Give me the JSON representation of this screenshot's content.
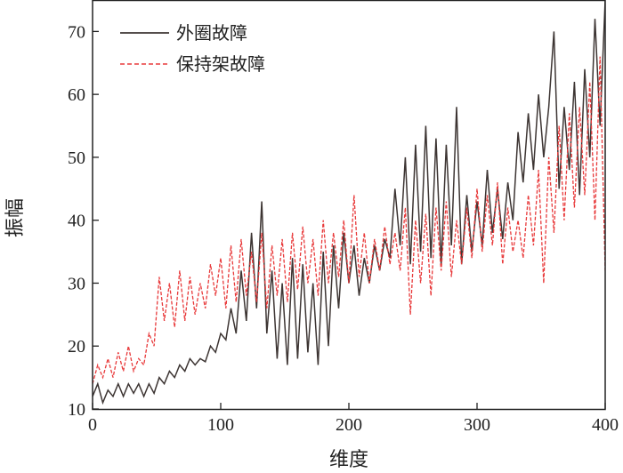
{
  "chart_data": {
    "type": "line",
    "title": "",
    "xlabel": "维度",
    "ylabel": "振幅",
    "xlim": [
      0,
      400
    ],
    "ylim": [
      10,
      75
    ],
    "xticks": [
      0,
      100,
      200,
      300,
      400
    ],
    "yticks": [
      10,
      20,
      30,
      40,
      50,
      60,
      70
    ],
    "grid": false,
    "legend_position": "top-left",
    "x": [
      0,
      4,
      8,
      12,
      16,
      20,
      24,
      28,
      32,
      36,
      40,
      44,
      48,
      52,
      56,
      60,
      64,
      68,
      72,
      76,
      80,
      84,
      88,
      92,
      96,
      100,
      104,
      108,
      112,
      116,
      120,
      124,
      128,
      132,
      136,
      140,
      144,
      148,
      152,
      156,
      160,
      164,
      168,
      172,
      176,
      180,
      184,
      188,
      192,
      196,
      200,
      204,
      208,
      212,
      216,
      220,
      224,
      228,
      232,
      236,
      240,
      244,
      248,
      252,
      256,
      260,
      264,
      268,
      272,
      276,
      280,
      284,
      288,
      292,
      296,
      300,
      304,
      308,
      312,
      316,
      320,
      324,
      328,
      332,
      336,
      340,
      344,
      348,
      352,
      356,
      360,
      364,
      368,
      372,
      376,
      380,
      384,
      388,
      392,
      396,
      400
    ],
    "series": [
      {
        "name": "外圈故障",
        "color": "#3d3533",
        "style": "solid",
        "values": [
          12,
          14,
          11,
          13,
          12,
          14,
          12,
          14,
          12.5,
          14,
          12,
          14,
          12.5,
          15,
          14,
          16,
          15,
          17,
          16,
          18,
          17,
          18,
          17.5,
          20,
          19,
          22,
          21,
          26,
          22,
          32,
          24,
          38,
          26,
          43,
          22,
          32,
          18,
          30,
          17,
          34,
          18,
          33,
          19,
          30,
          17,
          35,
          20,
          36,
          26,
          38,
          30,
          36,
          28,
          34,
          30,
          36,
          32,
          37,
          34,
          45,
          36,
          50,
          33,
          52,
          35,
          55,
          34,
          53,
          33,
          52,
          36,
          58,
          33,
          44,
          35,
          43,
          36,
          48,
          38,
          45,
          37,
          46,
          40,
          54,
          46,
          57,
          48,
          60,
          50,
          58,
          70,
          45,
          58,
          48,
          62,
          44,
          64,
          50,
          72,
          55,
          75
        ]
      },
      {
        "name": "保持架故障",
        "color": "#e8393a",
        "style": "dashed",
        "values": [
          14,
          17,
          15,
          18,
          15,
          19,
          16,
          20,
          16,
          18,
          17,
          22,
          20,
          31,
          24,
          30,
          23,
          32,
          24,
          31,
          25,
          30,
          26,
          33,
          28,
          34,
          26,
          36,
          27,
          37,
          28,
          35,
          27,
          38,
          26,
          36,
          28,
          37,
          27,
          38,
          29,
          39,
          30,
          37,
          28,
          40,
          30,
          38,
          31,
          40,
          30,
          44,
          31,
          38,
          30,
          37,
          32,
          39,
          33,
          38,
          32,
          42,
          25,
          40,
          30,
          41,
          28,
          42,
          32,
          43,
          31,
          40,
          33,
          42,
          34,
          45,
          35,
          44,
          36,
          46,
          33,
          42,
          35,
          40,
          34,
          44,
          36,
          48,
          30,
          50,
          38,
          55,
          40,
          57,
          42,
          58,
          44,
          62,
          40,
          66,
          32
        ]
      }
    ]
  }
}
